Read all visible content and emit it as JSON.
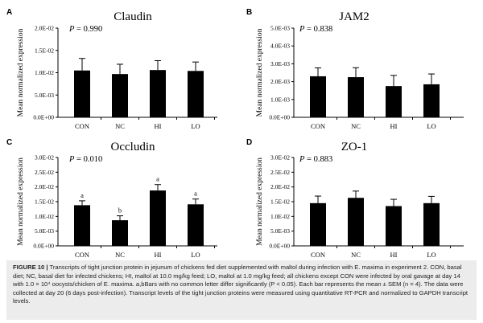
{
  "chart_data": [
    {
      "type": "bar",
      "panel_label": "A",
      "title": "Claudin",
      "p_label": "P",
      "p_value": "= 0.990",
      "ylabel": "Mean normalized expression",
      "ylim": [
        0,
        0.02
      ],
      "yticks": [
        0,
        0.005,
        0.01,
        0.015,
        0.02
      ],
      "ytick_labels": [
        "0.0E+00",
        "5.0E-03",
        "1.0E-02",
        "1.5E-02",
        "2.0E-02"
      ],
      "categories": [
        "CON",
        "NC",
        "HI",
        "LO"
      ],
      "values": [
        0.0105,
        0.0097,
        0.0106,
        0.0104
      ],
      "errors": [
        0.0027,
        0.0022,
        0.0021,
        0.002
      ],
      "letters": []
    },
    {
      "type": "bar",
      "panel_label": "B",
      "title": "JAM2",
      "p_label": "P",
      "p_value": "= 0.838",
      "ylabel": "Mean normalized expression",
      "ylim": [
        0,
        0.005
      ],
      "yticks": [
        0,
        0.001,
        0.002,
        0.003,
        0.004,
        0.005
      ],
      "ytick_labels": [
        "0.0E+00",
        "1.0E-03",
        "2.0E-03",
        "3.0E-03",
        "4.0E-03",
        "5.0E-03"
      ],
      "categories": [
        "CON",
        "NC",
        "HI",
        "LO"
      ],
      "values": [
        0.0023,
        0.00225,
        0.00175,
        0.00185
      ],
      "errors": [
        0.00047,
        0.00053,
        0.0006,
        0.00058
      ],
      "letters": []
    },
    {
      "type": "bar",
      "panel_label": "C",
      "title": "Occludin",
      "p_label": "P",
      "p_value": "= 0.010",
      "ylabel": "Mean normalized expression",
      "ylim": [
        0,
        0.03
      ],
      "yticks": [
        0,
        0.005,
        0.01,
        0.015,
        0.02,
        0.025,
        0.03
      ],
      "ytick_labels": [
        "0.0E+00",
        "5.0E-03",
        "1.0E-02",
        "1.5E-02",
        "2.0E-02",
        "2.5E-02",
        "3.0E-02"
      ],
      "categories": [
        "CON",
        "NC",
        "HI",
        "LO"
      ],
      "values": [
        0.0138,
        0.0087,
        0.0188,
        0.0141
      ],
      "errors": [
        0.0015,
        0.0015,
        0.002,
        0.0018
      ],
      "letters": [
        "a",
        "b",
        "a",
        "a"
      ]
    },
    {
      "type": "bar",
      "panel_label": "D",
      "title": "ZO-1",
      "p_label": "P",
      "p_value": "= 0.883",
      "ylabel": "Mean normalized expression",
      "ylim": [
        0,
        0.03
      ],
      "yticks": [
        0,
        0.005,
        0.01,
        0.015,
        0.02,
        0.025,
        0.03
      ],
      "ytick_labels": [
        "0.0E+00",
        "5.0E-03",
        "1.0E-02",
        "1.5E-02",
        "2.0E-02",
        "2.5E-02",
        "3.0E-02"
      ],
      "categories": [
        "CON",
        "NC",
        "HI",
        "LO"
      ],
      "values": [
        0.0145,
        0.0163,
        0.0135,
        0.0145
      ],
      "errors": [
        0.0024,
        0.0023,
        0.0023,
        0.0023
      ],
      "letters": []
    }
  ],
  "colors": {
    "bar": "#000000",
    "axis": "#000000",
    "caption_bg": "#ececec"
  },
  "caption": {
    "label": "FIGURE 10 |",
    "text": "Transcripts of tight junction protein in jejunum of chickens fed diet supplemented with maltol during infection with E. maxima in experiment 2. CON, basal diet; NC, basal diet for infected chickens; HI, maltol at 10.0 mg/kg feed; LO, maltol at 1.0 mg/kg feed; all chickens except CON were infected by oral gavage at day 14 with 1.0 × 10⁴ oocysts/chicken of E. maxima. a,bBars with no common letter differ significantly (P < 0.05). Each bar represents the mean ± SEM (n = 4). The data were collected at day 20 (6 days post-infection). Transcript levels of the tight junction proteins were measured using quantitative RT-PCR and normalized to GAPDH transcript levels."
  }
}
